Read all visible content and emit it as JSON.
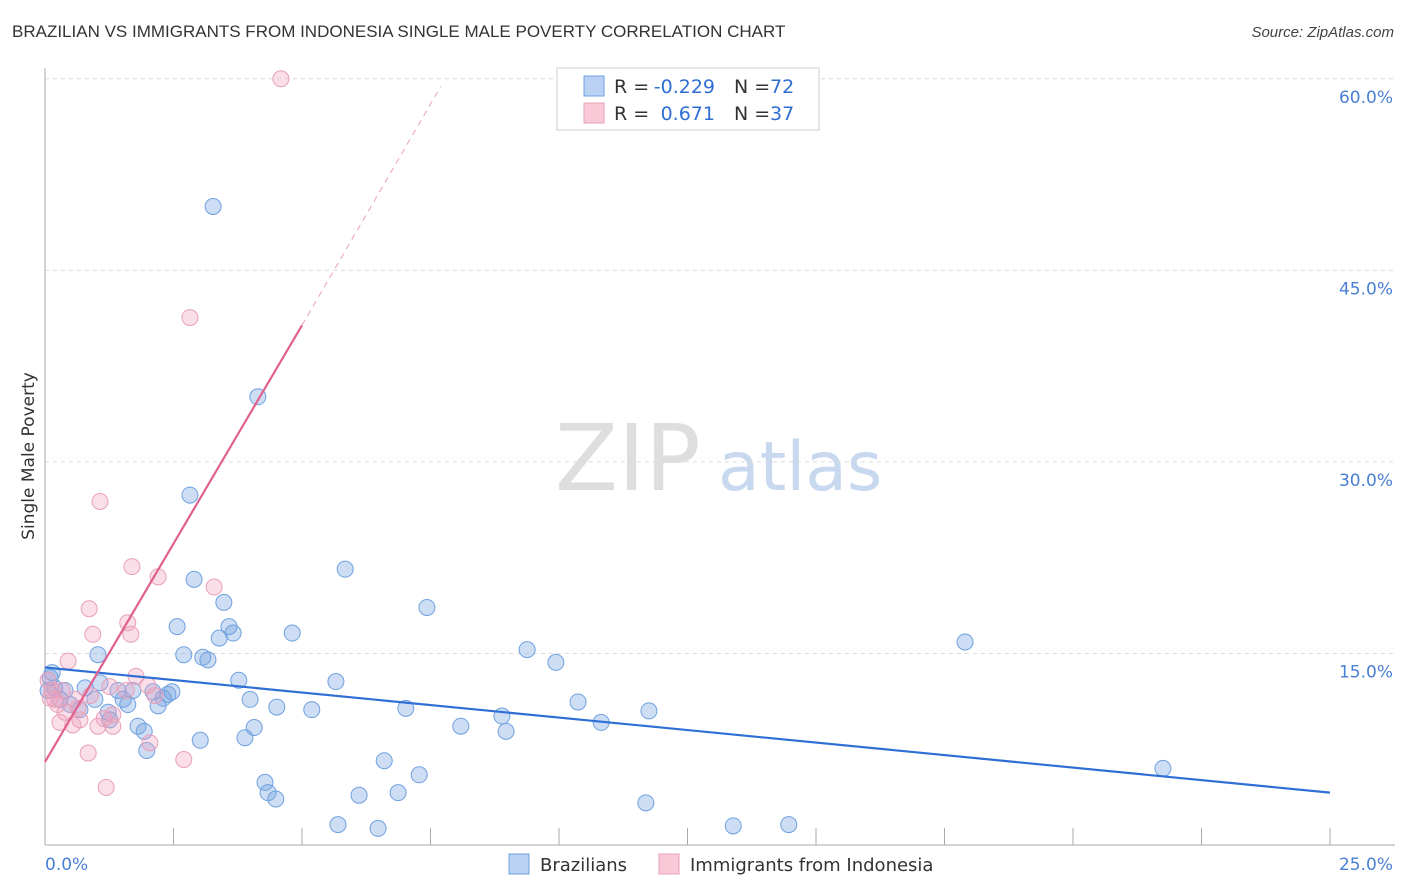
{
  "title": "BRAZILIAN VS IMMIGRANTS FROM INDONESIA SINGLE MALE POVERTY CORRELATION CHART",
  "source": "Source: ZipAtlas.com",
  "watermark": "ZIPatlas",
  "colors": {
    "blue": "#6fa0e0",
    "blue_line": "#2f6fd4",
    "pink": "#f0a0bc",
    "pink_line": "#e0608f",
    "tick": "#4a7fd4"
  },
  "chart_data": {
    "type": "scatter",
    "ylabel": "Single Male Poverty",
    "xlim": [
      0,
      25
    ],
    "ylim": [
      0,
      62
    ],
    "x_tick_labels": [
      {
        "v": 0,
        "label": "0.0%"
      },
      {
        "v": 25,
        "label": "25.0%"
      }
    ],
    "y_tick_labels": [
      {
        "v": 15,
        "label": "15.0%"
      },
      {
        "v": 30,
        "label": "30.0%"
      },
      {
        "v": 45,
        "label": "45.0%"
      },
      {
        "v": 60,
        "label": "60.0%"
      }
    ],
    "legend_stats": [
      {
        "r_label": "R = ",
        "r": "-0.229",
        "n_label": "N = ",
        "n": "72"
      },
      {
        "r_label": "R = ",
        "r": "0.671",
        "n_label": "N = ",
        "n": "37"
      }
    ],
    "series": [
      {
        "name": "Brazilians",
        "color": "#6fa0e0",
        "trend": {
          "x": [
            0,
            25
          ],
          "y": [
            13.9,
            4.1
          ]
        },
        "points": [
          [
            3.27,
            50.0
          ],
          [
            4.14,
            35.1
          ],
          [
            2.82,
            27.4
          ],
          [
            5.84,
            21.6
          ],
          [
            7.43,
            18.6
          ],
          [
            17.9,
            15.9
          ],
          [
            2.9,
            20.8
          ],
          [
            3.48,
            19.0
          ],
          [
            2.57,
            17.1
          ],
          [
            3.58,
            17.1
          ],
          [
            3.66,
            16.6
          ],
          [
            4.81,
            16.6
          ],
          [
            3.39,
            16.2
          ],
          [
            1.03,
            14.9
          ],
          [
            2.7,
            14.9
          ],
          [
            3.07,
            14.7
          ],
          [
            3.17,
            14.5
          ],
          [
            9.38,
            15.3
          ],
          [
            9.94,
            14.3
          ],
          [
            3.77,
            12.9
          ],
          [
            5.66,
            12.8
          ],
          [
            21.75,
            6.0
          ],
          [
            10.37,
            11.2
          ],
          [
            10.82,
            9.6
          ],
          [
            11.75,
            10.5
          ],
          [
            8.89,
            10.1
          ],
          [
            8.97,
            8.9
          ],
          [
            8.09,
            9.3
          ],
          [
            7.02,
            10.7
          ],
          [
            5.19,
            10.6
          ],
          [
            4.51,
            10.8
          ],
          [
            3.99,
            11.4
          ],
          [
            4.07,
            9.2
          ],
          [
            3.89,
            8.4
          ],
          [
            3.02,
            8.2
          ],
          [
            1.98,
            7.4
          ],
          [
            1.93,
            8.9
          ],
          [
            1.81,
            9.3
          ],
          [
            1.26,
            9.8
          ],
          [
            1.23,
            10.4
          ],
          [
            1.61,
            11.0
          ],
          [
            1.52,
            11.4
          ],
          [
            1.42,
            12.1
          ],
          [
            1.71,
            12.1
          ],
          [
            2.1,
            12.0
          ],
          [
            2.2,
            10.9
          ],
          [
            2.3,
            11.5
          ],
          [
            2.39,
            11.8
          ],
          [
            2.47,
            12.0
          ],
          [
            1.07,
            12.7
          ],
          [
            0.78,
            12.3
          ],
          [
            0.39,
            12.1
          ],
          [
            0.29,
            11.4
          ],
          [
            0.19,
            12.3
          ],
          [
            0.1,
            13.1
          ],
          [
            0.06,
            12.1
          ],
          [
            0.49,
            11.0
          ],
          [
            0.68,
            10.6
          ],
          [
            0.97,
            11.4
          ],
          [
            4.28,
            4.9
          ],
          [
            4.34,
            4.1
          ],
          [
            4.49,
            3.6
          ],
          [
            6.6,
            6.6
          ],
          [
            7.28,
            5.5
          ],
          [
            6.11,
            3.9
          ],
          [
            6.87,
            4.1
          ],
          [
            5.7,
            1.6
          ],
          [
            6.48,
            1.3
          ],
          [
            11.69,
            3.3
          ],
          [
            13.39,
            1.5
          ],
          [
            14.47,
            1.6
          ],
          [
            0.14,
            13.5
          ]
        ]
      },
      {
        "name": "Immigrants from Indonesia",
        "color": "#f0a0bc",
        "trend": {
          "x": [
            0,
            5.0
          ],
          "y": [
            6.5,
            40.7
          ]
        },
        "trend_dashed": {
          "x": [
            5.0,
            7.7
          ],
          "y": [
            40.7,
            59.4
          ]
        },
        "points": [
          [
            4.59,
            60.0
          ],
          [
            2.82,
            41.3
          ],
          [
            1.07,
            26.9
          ],
          [
            1.69,
            21.8
          ],
          [
            2.2,
            21.0
          ],
          [
            3.29,
            20.2
          ],
          [
            0.86,
            18.5
          ],
          [
            1.61,
            17.4
          ],
          [
            1.67,
            16.5
          ],
          [
            0.93,
            16.5
          ],
          [
            0.45,
            14.4
          ],
          [
            1.77,
            13.2
          ],
          [
            1.26,
            12.4
          ],
          [
            2.0,
            12.5
          ],
          [
            1.58,
            12.1
          ],
          [
            2.14,
            11.7
          ],
          [
            0.64,
            10.7
          ],
          [
            0.68,
            9.8
          ],
          [
            0.29,
            9.6
          ],
          [
            0.54,
            9.4
          ],
          [
            1.03,
            9.3
          ],
          [
            1.32,
            9.3
          ],
          [
            1.15,
            9.9
          ],
          [
            2.04,
            8.0
          ],
          [
            0.84,
            7.2
          ],
          [
            2.7,
            6.7
          ],
          [
            1.19,
            4.5
          ],
          [
            0.19,
            11.4
          ],
          [
            0.14,
            12.1
          ],
          [
            0.06,
            12.9
          ],
          [
            0.33,
            12.1
          ],
          [
            0.39,
            10.4
          ],
          [
            0.25,
            11.0
          ],
          [
            0.88,
            11.7
          ],
          [
            1.32,
            10.2
          ],
          [
            0.58,
            11.4
          ],
          [
            0.1,
            11.5
          ]
        ]
      }
    ]
  }
}
